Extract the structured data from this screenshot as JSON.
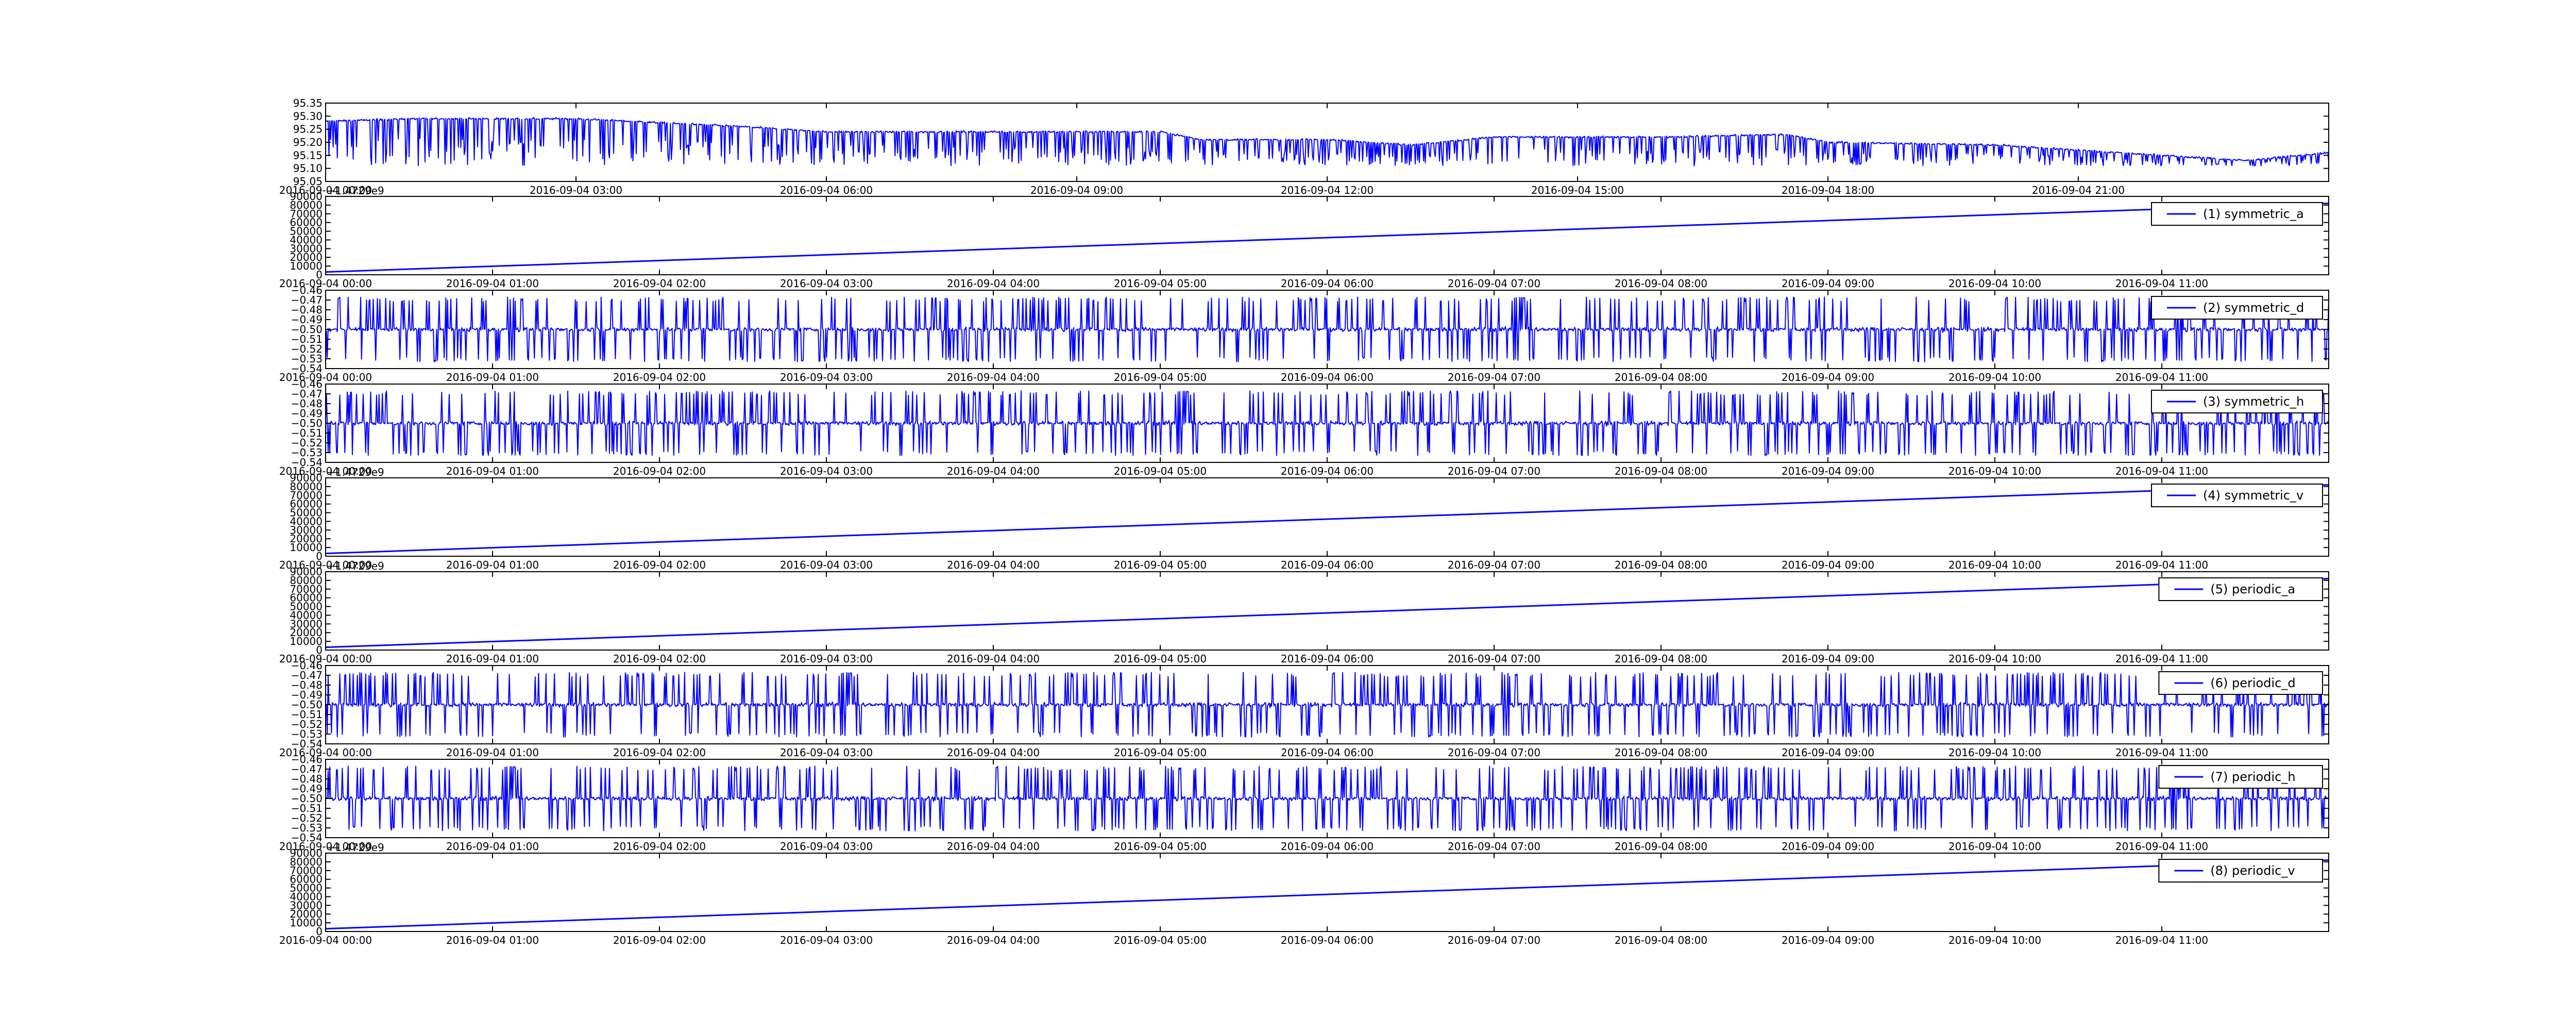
{
  "figure": {
    "colors": {
      "line": "#0000ff",
      "axes": "#000000",
      "background": "#ffffff"
    }
  },
  "chart_data": [
    {
      "type": "line",
      "title": "",
      "xlabel": "",
      "ylabel": "",
      "legend": null,
      "x_range": [
        "2016-09-04 00:00",
        "2016-09-05 00:00"
      ],
      "x_ticks": [
        "2016-09-04 00:00",
        "2016-09-04 03:00",
        "2016-09-04 06:00",
        "2016-09-04 09:00",
        "2016-09-04 12:00",
        "2016-09-04 15:00",
        "2016-09-04 18:00",
        "2016-09-04 21:00"
      ],
      "ylim": [
        95.05,
        95.35
      ],
      "y_ticks": [
        "95.05",
        "95.10",
        "95.15",
        "95.20",
        "95.25",
        "95.30",
        "95.35"
      ],
      "style": "noisy",
      "series": [
        {
          "baseline": {
            "x": [
              "2016-09-04 00:00",
              "2016-09-04 01:00",
              "2016-09-04 03:00",
              "2016-09-04 05:00",
              "2016-09-04 06:00",
              "2016-09-04 09:00",
              "2016-09-04 10:00",
              "2016-09-04 10:30",
              "2016-09-04 12:00",
              "2016-09-04 13:00",
              "2016-09-04 14:00",
              "2016-09-04 16:00",
              "2016-09-04 17:30",
              "2016-09-04 18:00",
              "2016-09-04 20:00",
              "2016-09-04 22:00",
              "2016-09-04 23:00",
              "2016-09-05 00:00"
            ],
            "y": [
              95.28,
              95.29,
              95.29,
              95.26,
              95.24,
              95.24,
              95.24,
              95.21,
              95.21,
              95.19,
              95.22,
              95.22,
              95.23,
              95.2,
              95.19,
              95.15,
              95.13,
              95.16
            ]
          },
          "spike_min": 95.11
        }
      ]
    },
    {
      "type": "line",
      "legend": "(1) symmetric_a",
      "offset_label": "+1.4729e9",
      "x_range": [
        "2016-09-04 00:00",
        "2016-09-04 12:00"
      ],
      "x_ticks": [
        "2016-09-04 00:00",
        "2016-09-04 01:00",
        "2016-09-04 02:00",
        "2016-09-04 03:00",
        "2016-09-04 04:00",
        "2016-09-04 05:00",
        "2016-09-04 06:00",
        "2016-09-04 07:00",
        "2016-09-04 08:00",
        "2016-09-04 09:00",
        "2016-09-04 10:00",
        "2016-09-04 11:00"
      ],
      "ylim": [
        0,
        90000
      ],
      "y_ticks": [
        "0",
        "10000",
        "20000",
        "30000",
        "40000",
        "50000",
        "60000",
        "70000",
        "80000",
        "90000"
      ],
      "style": "ramp",
      "series": [
        {
          "name": "(1) symmetric_a",
          "x": [
            "2016-09-04 00:00",
            "2016-09-04 12:00"
          ],
          "y": [
            3200,
            82000
          ]
        }
      ]
    },
    {
      "type": "line",
      "legend": "(2) symmetric_d",
      "x_range": [
        "2016-09-04 00:00",
        "2016-09-04 12:00"
      ],
      "x_ticks": [
        "2016-09-04 00:00",
        "2016-09-04 01:00",
        "2016-09-04 02:00",
        "2016-09-04 03:00",
        "2016-09-04 04:00",
        "2016-09-04 05:00",
        "2016-09-04 06:00",
        "2016-09-04 07:00",
        "2016-09-04 08:00",
        "2016-09-04 09:00",
        "2016-09-04 10:00",
        "2016-09-04 11:00"
      ],
      "ylim": [
        -0.54,
        -0.46
      ],
      "y_ticks": [
        "−0.54",
        "−0.53",
        "−0.52",
        "−0.51",
        "−0.50",
        "−0.49",
        "−0.48",
        "−0.47",
        "−0.46"
      ],
      "style": "noisy",
      "series": [
        {
          "name": "(2) symmetric_d",
          "mean": -0.5,
          "spike_max": -0.467,
          "spike_min": -0.533
        }
      ]
    },
    {
      "type": "line",
      "legend": "(3) symmetric_h",
      "x_range": [
        "2016-09-04 00:00",
        "2016-09-04 12:00"
      ],
      "x_ticks": [
        "2016-09-04 00:00",
        "2016-09-04 01:00",
        "2016-09-04 02:00",
        "2016-09-04 03:00",
        "2016-09-04 04:00",
        "2016-09-04 05:00",
        "2016-09-04 06:00",
        "2016-09-04 07:00",
        "2016-09-04 08:00",
        "2016-09-04 09:00",
        "2016-09-04 10:00",
        "2016-09-04 11:00"
      ],
      "ylim": [
        -0.54,
        -0.46
      ],
      "y_ticks": [
        "−0.54",
        "−0.53",
        "−0.52",
        "−0.51",
        "−0.50",
        "−0.49",
        "−0.48",
        "−0.47",
        "−0.46"
      ],
      "style": "noisy",
      "series": [
        {
          "name": "(3) symmetric_h",
          "mean": -0.5,
          "spike_max": -0.467,
          "spike_min": -0.533
        }
      ]
    },
    {
      "type": "line",
      "legend": "(4) symmetric_v",
      "offset_label": "+1.4729e9",
      "x_range": [
        "2016-09-04 00:00",
        "2016-09-04 12:00"
      ],
      "x_ticks": [
        "2016-09-04 00:00",
        "2016-09-04 01:00",
        "2016-09-04 02:00",
        "2016-09-04 03:00",
        "2016-09-04 04:00",
        "2016-09-04 05:00",
        "2016-09-04 06:00",
        "2016-09-04 07:00",
        "2016-09-04 08:00",
        "2016-09-04 09:00",
        "2016-09-04 10:00",
        "2016-09-04 11:00"
      ],
      "ylim": [
        0,
        90000
      ],
      "y_ticks": [
        "0",
        "10000",
        "20000",
        "30000",
        "40000",
        "50000",
        "60000",
        "70000",
        "80000",
        "90000"
      ],
      "style": "ramp",
      "series": [
        {
          "name": "(4) symmetric_v",
          "x": [
            "2016-09-04 00:00",
            "2016-09-04 12:00"
          ],
          "y": [
            3200,
            82000
          ]
        }
      ]
    },
    {
      "type": "line",
      "legend": "(5) periodic_a",
      "offset_label": "+1.4729e9",
      "x_range": [
        "2016-09-04 00:00",
        "2016-09-04 12:00"
      ],
      "x_ticks": [
        "2016-09-04 00:00",
        "2016-09-04 01:00",
        "2016-09-04 02:00",
        "2016-09-04 03:00",
        "2016-09-04 04:00",
        "2016-09-04 05:00",
        "2016-09-04 06:00",
        "2016-09-04 07:00",
        "2016-09-04 08:00",
        "2016-09-04 09:00",
        "2016-09-04 10:00",
        "2016-09-04 11:00"
      ],
      "ylim": [
        0,
        90000
      ],
      "y_ticks": [
        "0",
        "10000",
        "20000",
        "30000",
        "40000",
        "50000",
        "60000",
        "70000",
        "80000",
        "90000"
      ],
      "style": "ramp",
      "series": [
        {
          "name": "(5) periodic_a",
          "x": [
            "2016-09-04 00:00",
            "2016-09-04 12:00"
          ],
          "y": [
            3200,
            82000
          ]
        }
      ]
    },
    {
      "type": "line",
      "legend": "(6) periodic_d",
      "x_range": [
        "2016-09-04 00:00",
        "2016-09-04 12:00"
      ],
      "x_ticks": [
        "2016-09-04 00:00",
        "2016-09-04 01:00",
        "2016-09-04 02:00",
        "2016-09-04 03:00",
        "2016-09-04 04:00",
        "2016-09-04 05:00",
        "2016-09-04 06:00",
        "2016-09-04 07:00",
        "2016-09-04 08:00",
        "2016-09-04 09:00",
        "2016-09-04 10:00",
        "2016-09-04 11:00"
      ],
      "ylim": [
        -0.54,
        -0.46
      ],
      "y_ticks": [
        "−0.54",
        "−0.53",
        "−0.52",
        "−0.51",
        "−0.50",
        "−0.49",
        "−0.48",
        "−0.47",
        "−0.46"
      ],
      "style": "noisy",
      "series": [
        {
          "name": "(6) periodic_d",
          "mean": -0.5,
          "spike_max": -0.467,
          "spike_min": -0.533
        }
      ]
    },
    {
      "type": "line",
      "legend": "(7) periodic_h",
      "x_range": [
        "2016-09-04 00:00",
        "2016-09-04 12:00"
      ],
      "x_ticks": [
        "2016-09-04 00:00",
        "2016-09-04 01:00",
        "2016-09-04 02:00",
        "2016-09-04 03:00",
        "2016-09-04 04:00",
        "2016-09-04 05:00",
        "2016-09-04 06:00",
        "2016-09-04 07:00",
        "2016-09-04 08:00",
        "2016-09-04 09:00",
        "2016-09-04 10:00",
        "2016-09-04 11:00"
      ],
      "ylim": [
        -0.54,
        -0.46
      ],
      "y_ticks": [
        "−0.54",
        "−0.53",
        "−0.52",
        "−0.51",
        "−0.50",
        "−0.49",
        "−0.48",
        "−0.47",
        "−0.46"
      ],
      "style": "noisy",
      "series": [
        {
          "name": "(7) periodic_h",
          "mean": -0.5,
          "spike_max": -0.467,
          "spike_min": -0.533
        }
      ]
    },
    {
      "type": "line",
      "legend": "(8) periodic_v",
      "offset_label": "+1.4729e9",
      "x_range": [
        "2016-09-04 00:00",
        "2016-09-04 12:00"
      ],
      "x_ticks": [
        "2016-09-04 00:00",
        "2016-09-04 01:00",
        "2016-09-04 02:00",
        "2016-09-04 03:00",
        "2016-09-04 04:00",
        "2016-09-04 05:00",
        "2016-09-04 06:00",
        "2016-09-04 07:00",
        "2016-09-04 08:00",
        "2016-09-04 09:00",
        "2016-09-04 10:00",
        "2016-09-04 11:00"
      ],
      "ylim": [
        0,
        90000
      ],
      "y_ticks": [
        "0",
        "10000",
        "20000",
        "30000",
        "40000",
        "50000",
        "60000",
        "70000",
        "80000",
        "90000"
      ],
      "style": "ramp",
      "series": [
        {
          "name": "(8) periodic_v",
          "x": [
            "2016-09-04 00:00",
            "2016-09-04 12:00"
          ],
          "y": [
            3200,
            82000
          ]
        }
      ]
    }
  ]
}
